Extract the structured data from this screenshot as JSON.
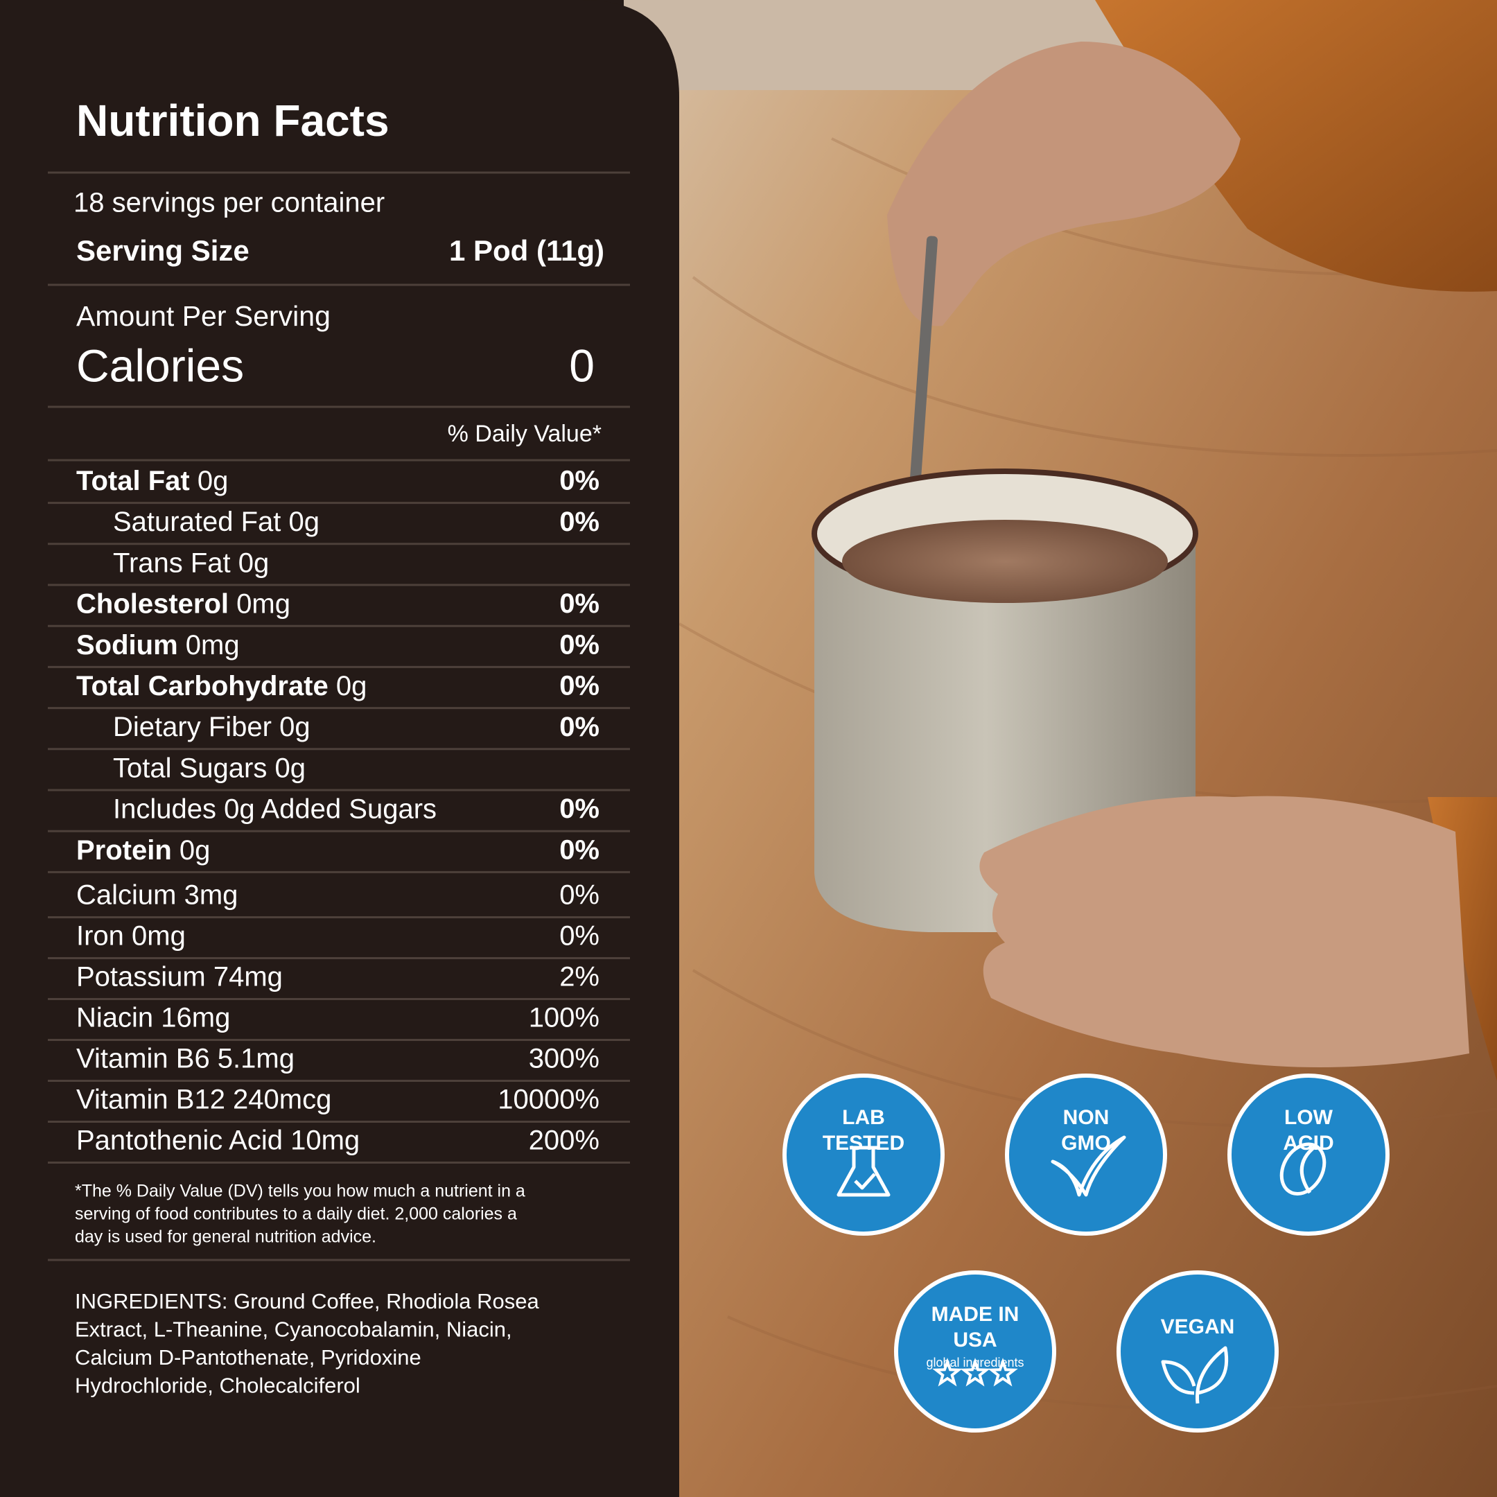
{
  "title": "Nutrition Facts",
  "servings": "18 servings per container",
  "serving_size": {
    "label": "Serving Size",
    "value": "1 Pod (11g)"
  },
  "amount_per_serving": "Amount Per Serving",
  "calories": {
    "label": "Calories",
    "value": "0"
  },
  "daily_value_header": "% Daily Value*",
  "nutrients": [
    {
      "name": "Total Fat",
      "amount": "0g",
      "dv": "0%",
      "bold": true,
      "indent": false
    },
    {
      "name": "Saturated Fat",
      "amount": "0g",
      "dv": "0%",
      "bold": false,
      "indent": true
    },
    {
      "name": "Trans Fat",
      "amount": "0g",
      "bold": false,
      "indent": true
    },
    {
      "name": "Cholesterol",
      "amount": "0mg",
      "dv": "0%",
      "bold": true,
      "indent": false
    },
    {
      "name": "Sodium",
      "amount": "0mg",
      "dv": "0%",
      "bold": true,
      "indent": false
    },
    {
      "name": "Total Carbohydrate",
      "amount": "0g",
      "dv": "0%",
      "bold": true,
      "indent": false
    },
    {
      "name": "Dietary Fiber",
      "amount": "0g",
      "dv": "0%",
      "bold": false,
      "indent": true
    },
    {
      "name": "Total Sugars",
      "amount": "0g",
      "bold": false,
      "indent": true
    },
    {
      "name": "Includes 0g Added Sugars",
      "dv": "0%",
      "bold": false,
      "indent": true
    },
    {
      "name": "Protein",
      "amount": "0g",
      "dv": "0%",
      "bold": true,
      "indent": false
    }
  ],
  "vitamins": [
    {
      "name": "Calcium 3mg",
      "dv": "0%"
    },
    {
      "name": "Iron 0mg",
      "dv": "0%"
    },
    {
      "name": "Potassium 74mg",
      "dv": "2%"
    },
    {
      "name": "Niacin 16mg",
      "dv": "100%"
    },
    {
      "name": "Vitamin B6 5.1mg",
      "dv": "300%"
    },
    {
      "name": "Vitamin B12 240mcg",
      "dv": "10000%"
    },
    {
      "name": "Pantothenic Acid 10mg",
      "dv": "200%"
    }
  ],
  "footnote": [
    "*The % Daily Value (DV) tells you how much a nutrient in a",
    "serving of food contributes to a daily diet. 2,000 calories a",
    "day is used for general nutrition advice."
  ],
  "ingredients": [
    "INGREDIENTS: Ground Coffee, Rhodiola Rosea",
    "Extract, L-Theanine, Cyanocobalamin, Niacin,",
    "Calcium D-Pantothenate, Pyridoxine",
    "Hydrochloride, Cholecalciferol"
  ],
  "badges": [
    {
      "lines": [
        "LAB",
        "TESTED"
      ]
    },
    {
      "lines": [
        "NON",
        "GMO"
      ]
    },
    {
      "lines": [
        "LOW",
        "ACID"
      ]
    },
    {
      "lines": [
        "MADE IN",
        "USA"
      ],
      "subtitle": "global ingredients"
    },
    {
      "lines": [
        "VEGAN"
      ]
    }
  ]
}
